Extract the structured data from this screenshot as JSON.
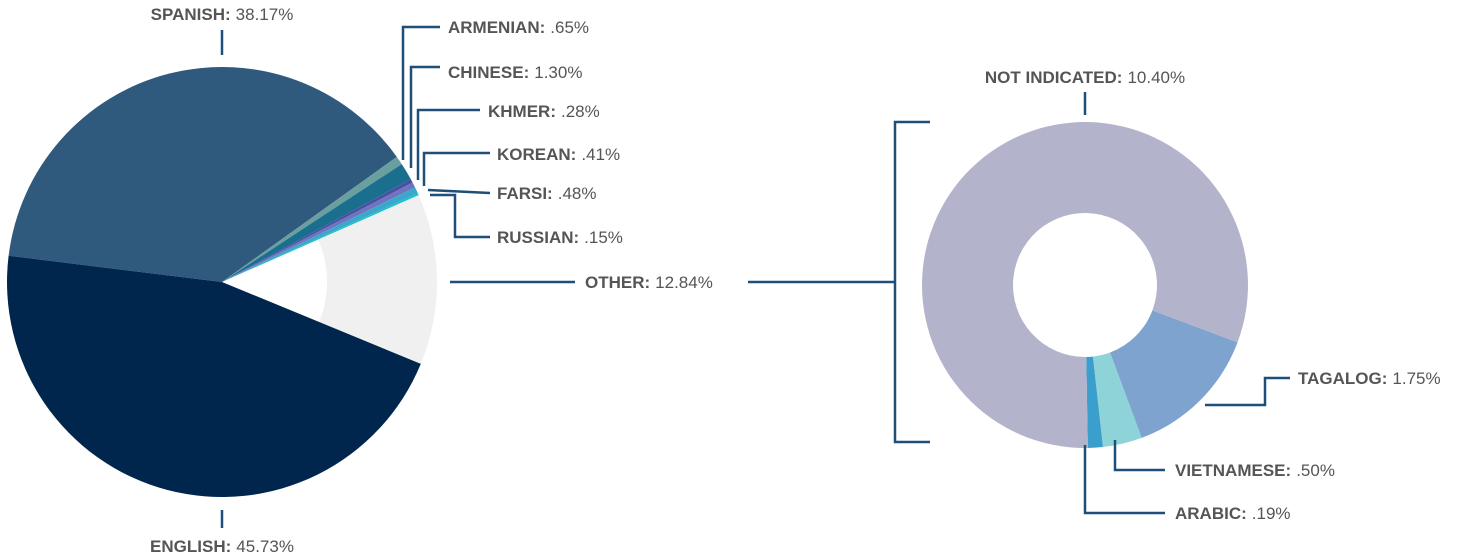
{
  "chart_data": [
    {
      "type": "pie",
      "categories": [
        "SPANISH:",
        "ARMENIAN:",
        "CHINESE:",
        "KHMER:",
        "KOREAN:",
        "FARSI:",
        "RUSSIAN:",
        "OTHER:",
        "ENGLISH:"
      ],
      "values": [
        38.17,
        0.65,
        1.3,
        0.28,
        0.41,
        0.48,
        0.15,
        12.84,
        45.73
      ],
      "value_labels": [
        "38.17%",
        ".65%",
        "1.30%",
        ".28%",
        ".41%",
        ".48%",
        ".15%",
        "12.84%",
        "45.73%"
      ],
      "colors": [
        "#2f5a7e",
        "#6a9fa0",
        "#1a6f8f",
        "#4a4fa0",
        "#6e74c0",
        "#3aa8c8",
        "#19c0d0",
        "#f0f0f0",
        "#00264d"
      ]
    },
    {
      "type": "donut",
      "categories": [
        "TAGALOG:",
        "VIETNAMESE:",
        "ARABIC:",
        "NOT INDICATED:"
      ],
      "values": [
        1.75,
        0.5,
        0.19,
        10.4
      ],
      "value_labels": [
        "1.75%",
        ".50%",
        ".19%",
        "10.40%"
      ],
      "colors": [
        "#7ea3cf",
        "#8dd3d8",
        "#3a9fcc",
        "#b3b4cc"
      ]
    }
  ]
}
